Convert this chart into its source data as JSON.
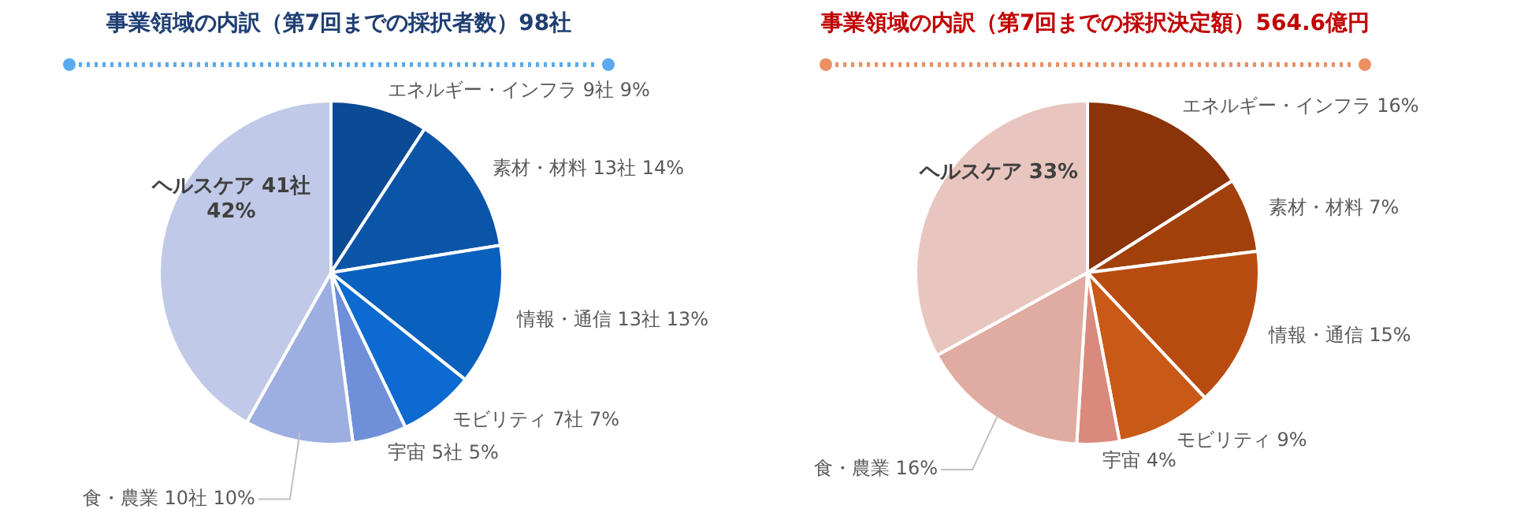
{
  "chart_data": [
    {
      "type": "pie",
      "title": "事業領域の内訳（第7回までの採択者数）98社",
      "categories": [
        "エネルギー・インフラ",
        "素材・材料",
        "情報・通信",
        "モビリティ",
        "宇宙",
        "食・農業",
        "ヘルスケア"
      ],
      "values": [
        9,
        13,
        13,
        7,
        5,
        10,
        41
      ],
      "value_labels": [
        "9社 9%",
        "13社 14%",
        "13社 13%",
        "7社 7%",
        "5社 5%",
        "10社 10%",
        "41社 42%"
      ],
      "colors": [
        "#0b4a94",
        "#0b55a8",
        "#0a60bd",
        "#0c6ad0",
        "#6f8fd8",
        "#9dafe0",
        "#c0c9e7"
      ],
      "legend": false
    },
    {
      "type": "pie",
      "title": "事業領域の内訳（第7回までの採択決定額）564.6億円",
      "categories": [
        "エネルギー・インフラ",
        "素材・材料",
        "情報・通信",
        "モビリティ",
        "宇宙",
        "食・農業",
        "ヘルスケア"
      ],
      "values": [
        16,
        7,
        15,
        9,
        4,
        16,
        33
      ],
      "value_labels": [
        "16%",
        "7%",
        "15%",
        "9%",
        "4%",
        "16%",
        "33%"
      ],
      "colors": [
        "#8b3409",
        "#a2400b",
        "#b84c10",
        "#c95917",
        "#d98a7c",
        "#e0aba0",
        "#e8c6bf"
      ],
      "legend": false
    }
  ]
}
